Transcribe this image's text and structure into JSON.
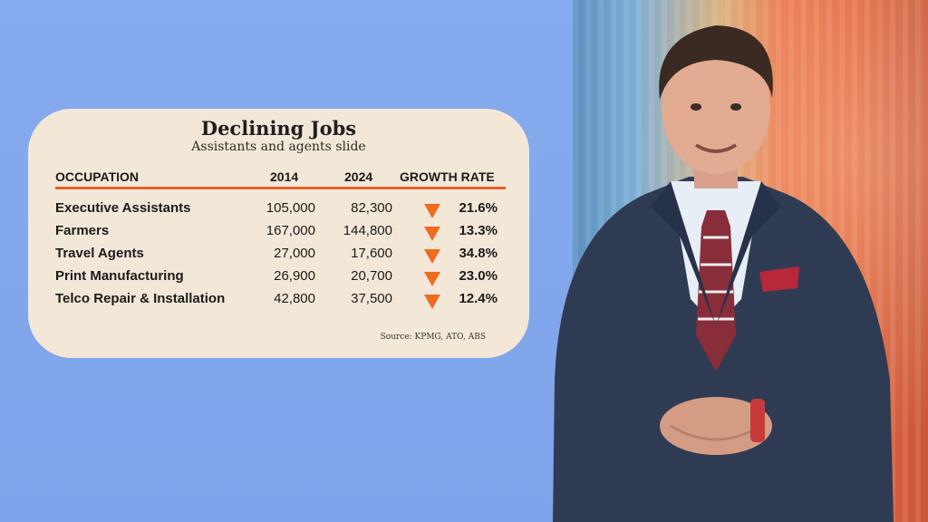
{
  "chart_data": {
    "type": "table",
    "title": "Declining Jobs",
    "subtitle": "Assistants and agents slide",
    "columns": [
      "OCCUPATION",
      "2014",
      "2024",
      "GROWTH RATE"
    ],
    "rows": [
      {
        "occupation": "Executive Assistants",
        "y2014": "105,000",
        "y2024": "82,300",
        "rate": "21.6%"
      },
      {
        "occupation": "Farmers",
        "y2014": "167,000",
        "y2024": "144,800",
        "rate": "13.3%"
      },
      {
        "occupation": "Travel Agents",
        "y2014": "27,000",
        "y2024": "17,600",
        "rate": "34.8%"
      },
      {
        "occupation": "Print Manufacturing",
        "y2014": "26,900",
        "y2024": "20,700",
        "rate": "23.0%"
      },
      {
        "occupation": "Telco Repair & Installation",
        "y2014": "42,800",
        "y2024": "37,500",
        "rate": "12.4%"
      }
    ],
    "direction_icon": "down-triangle-icon",
    "source": "Source: KPMG, ATO, ABS"
  },
  "colors": {
    "background": "#7fa6ec",
    "card": "#f3e8d8",
    "accent": "#ef6b1f"
  }
}
